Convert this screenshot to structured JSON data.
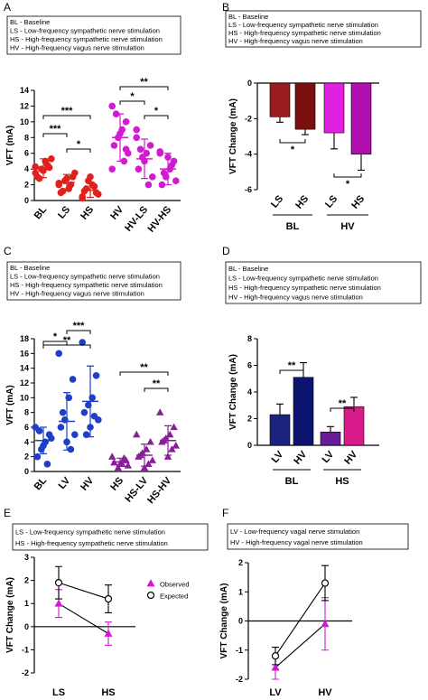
{
  "chart_data": [
    {
      "type": "dot",
      "panel": "A",
      "ylabel": "VFT (mA)",
      "legend_text": [
        "BL - Baseline",
        "LS - Low-frequency sympathetic nerve stimulation",
        "HS - High-frequency sympathetic nerve stimulation",
        "HV - High-frequency vagus nerve stimulation"
      ],
      "categories": [
        "BL",
        "LS",
        "HS",
        "HV",
        "HV-LS",
        "HV-HS"
      ],
      "points": [
        [
          3.5,
          4.2,
          5,
          4,
          3,
          5.3,
          4.5,
          3.8,
          2.8,
          4.3
        ],
        [
          2,
          3,
          1.5,
          2.5,
          1,
          3.5,
          2,
          2.8,
          1.2,
          2.2
        ],
        [
          0.5,
          1,
          2,
          2.5,
          1.2,
          0.8,
          1.8,
          3,
          1.5,
          0.3
        ],
        [
          12,
          10,
          9,
          8,
          7,
          6,
          5,
          8.5,
          11,
          4,
          6.5
        ],
        [
          9,
          7,
          6,
          5.5,
          4,
          3,
          2,
          5,
          6.5,
          8
        ],
        [
          6,
          5,
          4,
          3,
          2,
          2.5,
          4.5,
          5.5,
          3.5,
          6.2
        ]
      ],
      "means": [
        4.1,
        2.3,
        1.3,
        8,
        5.3,
        4
      ],
      "sds": [
        1.2,
        1,
        0.9,
        3,
        2.5,
        2
      ],
      "colors": [
        "#e0201c",
        "#e0201c",
        "#e0201c",
        "#d21ad2",
        "#d21ad2",
        "#d21ad2"
      ],
      "markers": [
        "circle",
        "circle",
        "circle",
        "circle",
        "circle",
        "circle"
      ],
      "ylim": [
        0,
        14
      ],
      "yticks": [
        0,
        2,
        4,
        6,
        8,
        10,
        12,
        14
      ],
      "significance": [
        {
          "from": 0,
          "to": 2,
          "label": "***"
        },
        {
          "from": 0,
          "to": 1,
          "label": "***"
        },
        {
          "from": 1,
          "to": 2,
          "label": "*"
        },
        {
          "from": 3,
          "to": 5,
          "label": "**"
        },
        {
          "from": 3,
          "to": 4,
          "label": "*"
        },
        {
          "from": 4,
          "to": 5,
          "label": "*"
        }
      ]
    },
    {
      "type": "bar",
      "panel": "B",
      "ylabel": "VFT Change (mA)",
      "legend_text": [
        "BL - Baseline",
        "LS - Low-frequency sympathetic nerve stimulation",
        "HS - High-frequency sympathetic nerve stimulation",
        "HV - High-frequency vagus nerve stimulation"
      ],
      "categories": [
        "LS",
        "HS",
        "LS",
        "HS"
      ],
      "groups": [
        "BL",
        "HV"
      ],
      "values": [
        -1.9,
        -2.6,
        -2.8,
        -4.0
      ],
      "errors": [
        0.3,
        0.3,
        0.9,
        0.9
      ],
      "colors": [
        "#9b1c1c",
        "#7a1010",
        "#e020e0",
        "#b010b0"
      ],
      "ylim": [
        -6,
        0
      ],
      "yticks": [
        -6,
        -4,
        -2,
        0
      ],
      "significance": [
        {
          "from": 0,
          "to": 1,
          "label": "*"
        },
        {
          "from": 2,
          "to": 3,
          "label": "*"
        }
      ]
    },
    {
      "type": "dot",
      "panel": "C",
      "ylabel": "VFT (mA)",
      "legend_text": [
        "BL - Baseline",
        "LS - Low-frequency sympathetic nerve stimulation",
        "HS - High-frequency sympathetic nerve stimulation",
        "HV - High-frequency vagus nerve stimulation"
      ],
      "categories": [
        "BL",
        "LV",
        "HV",
        "HS",
        "HS-LV",
        "HS-HV"
      ],
      "points": [
        [
          6,
          5,
          4,
          3,
          2,
          4.5,
          1,
          3.5,
          5.5
        ],
        [
          16,
          12.5,
          10,
          7,
          6,
          5,
          3,
          4,
          8
        ],
        [
          17.5,
          13,
          10,
          9,
          8,
          7,
          7.5,
          6,
          5
        ],
        [
          2,
          1.5,
          1,
          0.5,
          1.2,
          0.8,
          1.8,
          1
        ],
        [
          5,
          4,
          3,
          2.5,
          2,
          1.5,
          1,
          0.5,
          2.2
        ],
        [
          8,
          6,
          5,
          4.5,
          4,
          3.5,
          3,
          2,
          4.2
        ]
      ],
      "means": [
        4.2,
        6.8,
        9.5,
        1.3,
        2.2,
        4.2
      ],
      "sds": [
        1.8,
        3.9,
        4.8,
        0.5,
        1.5,
        2
      ],
      "colors": [
        "#1f3fc8",
        "#1f3fc8",
        "#1f3fc8",
        "#8a1f9a",
        "#8a1f9a",
        "#8a1f9a"
      ],
      "markers": [
        "circle",
        "circle",
        "circle",
        "triangle",
        "triangle",
        "triangle"
      ],
      "ylim": [
        0,
        18
      ],
      "yticks": [
        0,
        2,
        4,
        6,
        8,
        10,
        12,
        14,
        16,
        18
      ],
      "significance": [
        {
          "from": 0,
          "to": 2,
          "label": "**"
        },
        {
          "from": 1,
          "to": 2,
          "label": "***"
        },
        {
          "from": 0,
          "to": 1,
          "label": "*"
        },
        {
          "from": 3,
          "to": 5,
          "label": "**"
        },
        {
          "from": 4,
          "to": 5,
          "label": "**"
        }
      ]
    },
    {
      "type": "bar",
      "panel": "D",
      "ylabel": "VFT Change (mA)",
      "legend_text": [
        "BL - Baseline",
        "LS - Low-frequency sympathetic nerve stimulation",
        "HS - High-frequency sympathetic nerve stimulation",
        "HV - High-frequency vagus nerve stimulation"
      ],
      "categories": [
        "LV",
        "HV",
        "LV",
        "HV"
      ],
      "groups": [
        "BL",
        "HS"
      ],
      "values": [
        2.3,
        5.1,
        1.0,
        2.9
      ],
      "errors": [
        0.8,
        1.1,
        0.4,
        0.7
      ],
      "colors": [
        "#1a237e",
        "#0d1470",
        "#6a1b9a",
        "#d81b8a"
      ],
      "ylim": [
        0,
        8
      ],
      "yticks": [
        0,
        2,
        4,
        6,
        8
      ],
      "significance": [
        {
          "from": 0,
          "to": 1,
          "label": "**"
        },
        {
          "from": 2,
          "to": 3,
          "label": "**"
        }
      ]
    },
    {
      "type": "line",
      "panel": "E",
      "ylabel": "VFT Change (mA)",
      "legend_text": [
        "LS - Low-frequency sympathetic nerve stimulation",
        "HS - High-frequency sympathetic nerve stimulation"
      ],
      "categories": [
        "LS",
        "HS"
      ],
      "series": [
        {
          "name": "Observed",
          "color": "#d21ad2",
          "marker": "triangle",
          "values": [
            1.0,
            -0.3
          ],
          "errors": [
            0.6,
            0.5
          ]
        },
        {
          "name": "Expected",
          "color": "#000000",
          "marker": "circle",
          "values": [
            1.9,
            1.2
          ],
          "errors": [
            0.7,
            0.6
          ]
        }
      ],
      "show_legend": true,
      "ylim": [
        -2,
        3
      ],
      "yticks": [
        -2,
        -1,
        0,
        1,
        2,
        3
      ]
    },
    {
      "type": "line",
      "panel": "F",
      "ylabel": "VFT Change (mA)",
      "legend_text": [
        "LV - Low-frequency vagal nerve stimulation",
        "HV - High-frequency vagal nerve stimulation"
      ],
      "categories": [
        "LV",
        "HV"
      ],
      "series": [
        {
          "name": "Observed",
          "color": "#d21ad2",
          "marker": "triangle",
          "values": [
            -1.6,
            -0.1
          ],
          "errors": [
            0.4,
            0.9
          ]
        },
        {
          "name": "Expected",
          "color": "#000000",
          "marker": "circle",
          "values": [
            -1.2,
            1.3
          ],
          "errors": [
            0.3,
            0.6
          ]
        }
      ],
      "show_legend": false,
      "ylim": [
        -2,
        2
      ],
      "yticks": [
        -2,
        -1,
        0,
        1,
        2
      ]
    }
  ]
}
